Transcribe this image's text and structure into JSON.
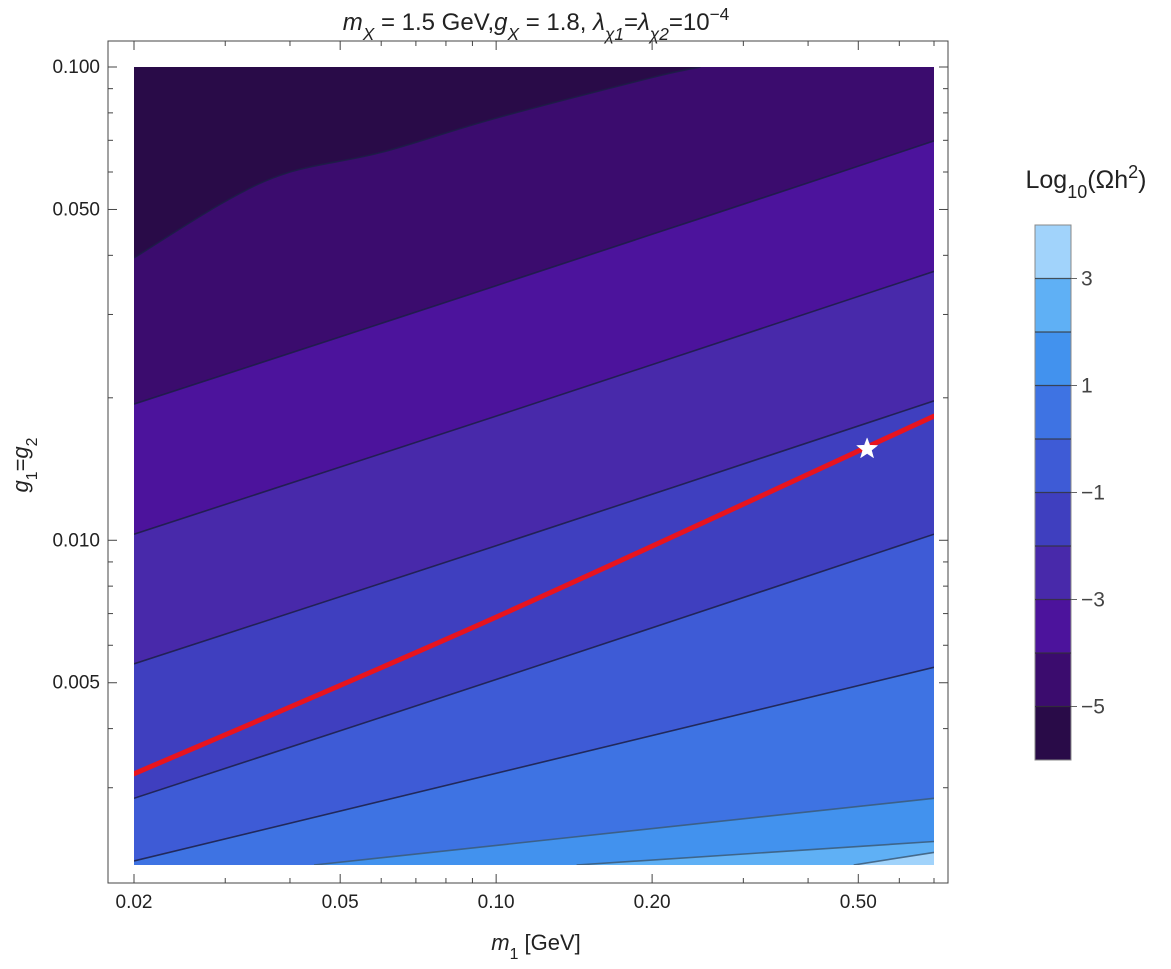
{
  "chart_data": {
    "type": "contour",
    "title": {
      "parts": [
        {
          "t": "m",
          "italic": true
        },
        {
          "t": "X",
          "italic": true,
          "sub": true
        },
        {
          "t": " = 1.5 GeV,"
        },
        {
          "t": "g",
          "italic": true
        },
        {
          "t": "X",
          "italic": true,
          "sub": true
        },
        {
          "t": " = 1.8, "
        },
        {
          "t": "λ",
          "italic": true
        },
        {
          "t": "χ1",
          "italic": true,
          "sub": true
        },
        {
          "t": "="
        },
        {
          "t": "λ",
          "italic": true
        },
        {
          "t": "χ2",
          "italic": true,
          "sub": true
        },
        {
          "t": "=10"
        },
        {
          "t": "−4",
          "sup": true
        }
      ]
    },
    "xlabel": {
      "parts": [
        {
          "t": "m",
          "italic": true
        },
        {
          "t": "1",
          "sub": true
        },
        {
          "t": " [GeV]"
        }
      ]
    },
    "ylabel": {
      "parts": [
        {
          "t": "g",
          "italic": true
        },
        {
          "t": "1",
          "sub": true
        },
        {
          "t": "="
        },
        {
          "t": "g",
          "italic": true
        },
        {
          "t": "2",
          "sub": true
        }
      ]
    },
    "x_scale": "log",
    "y_scale": "log",
    "xlim": [
      0.02,
      0.7
    ],
    "ylim": [
      0.00206,
      0.1
    ],
    "x_ticks": [
      {
        "v": 0.02,
        "label": "0.02"
      },
      {
        "v": 0.05,
        "label": "0.05"
      },
      {
        "v": 0.1,
        "label": "0.10"
      },
      {
        "v": 0.2,
        "label": "0.20"
      },
      {
        "v": 0.5,
        "label": "0.50"
      }
    ],
    "y_ticks": [
      {
        "v": 0.1,
        "label": "0.100"
      },
      {
        "v": 0.05,
        "label": "0.050"
      },
      {
        "v": 0.01,
        "label": "0.010"
      },
      {
        "v": 0.005,
        "label": "0.005"
      }
    ],
    "colorbar": {
      "title_parts": [
        {
          "t": "Log"
        },
        {
          "t": "10",
          "sub": true
        },
        {
          "t": "(Ωh"
        },
        {
          "t": "2",
          "sup": true
        },
        {
          "t": ")"
        }
      ],
      "range": [
        -6,
        4
      ],
      "tick_values": [
        3,
        1,
        -1,
        -3,
        -5
      ],
      "tick_labels": [
        "3",
        "1",
        "−1",
        "−3",
        "−5"
      ],
      "level_lines": [
        3,
        2,
        1,
        0,
        -1,
        -2,
        -3,
        -4,
        -5
      ]
    },
    "contour_levels": [
      {
        "level": -5,
        "pts": [
          [
            0.02,
            0.0395
          ],
          [
            0.03,
            0.052
          ],
          [
            0.04,
            0.06
          ],
          [
            0.06,
            0.066
          ],
          [
            0.1,
            0.078
          ],
          [
            0.2,
            0.095
          ],
          [
            0.248,
            0.1
          ]
        ]
      },
      {
        "level": -4,
        "pts": [
          [
            0.02,
            0.0194
          ],
          [
            0.05,
            0.0269
          ],
          [
            0.1,
            0.0345
          ],
          [
            0.2,
            0.0443
          ],
          [
            0.4,
            0.0569
          ],
          [
            0.7,
            0.0698
          ]
        ]
      },
      {
        "level": -3,
        "pts": [
          [
            0.02,
            0.0103
          ],
          [
            0.1,
            0.0183
          ],
          [
            0.7,
            0.037
          ]
        ]
      },
      {
        "level": -2,
        "pts": [
          [
            0.02,
            0.00548
          ],
          [
            0.1,
            0.00974
          ],
          [
            0.7,
            0.0197
          ]
        ]
      },
      {
        "level": -1,
        "pts": [
          [
            0.02,
            0.00285
          ],
          [
            0.1,
            0.00508
          ],
          [
            0.7,
            0.0103
          ]
        ]
      },
      {
        "level": 0,
        "pts": [
          [
            0.02,
            0.0021
          ],
          [
            0.7,
            0.00539
          ]
        ]
      },
      {
        "level": 1,
        "pts": [
          [
            0.0445,
            0.00206
          ],
          [
            0.7,
            0.00285
          ]
        ]
      },
      {
        "level": 2,
        "pts": [
          [
            0.143,
            0.00206
          ],
          [
            0.7,
            0.00231
          ]
        ]
      },
      {
        "level": 3,
        "pts": [
          [
            0.49,
            0.00206
          ],
          [
            0.7,
            0.00219
          ]
        ]
      }
    ],
    "band_colors": [
      "#290b48",
      "#3b0c6e",
      "#4c139c",
      "#4829aa",
      "#3f3fbf",
      "#3e5bd6",
      "#3e73e3",
      "#4292ee",
      "#5fb0f5",
      "#a1d3fb",
      "#cdeafc"
    ],
    "red_curve": {
      "color": "#e8141e",
      "pts": [
        [
          0.02,
          0.00321
        ],
        [
          0.1,
          0.00688
        ],
        [
          0.7,
          0.0183
        ]
      ]
    },
    "star_point": {
      "x": 0.52,
      "y": 0.0156,
      "color": "#ffffff"
    }
  }
}
